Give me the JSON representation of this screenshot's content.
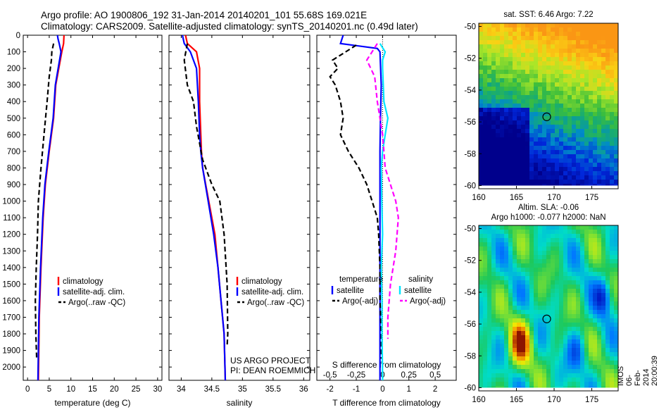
{
  "header": {
    "line1": "Argo profile: AO 1900806_192 31-Jan-2014 20140201_101 55.68S 169.021E",
    "line2": "Climatology: CARS2009. Satellite-adjusted climatology: synTS_20140201.nc (0.49d later)"
  },
  "credits": {
    "project": "US ARGO PROJECT",
    "pi": "PI: DEAN ROEMMICH",
    "stamp": "IMOS 06-Feb-2014 20:00:39"
  },
  "colors": {
    "climatology": "#ff0000",
    "satellite": "#0000ff",
    "argo": "#000000",
    "satellite_salinity": "#00e5ff",
    "argo_salinity": "#ff00ff"
  },
  "chart_data": [
    {
      "type": "line",
      "name": "temperature",
      "xlabel": "temperature (deg C)",
      "ylabel": "",
      "xlim": [
        -1,
        31
      ],
      "ylim": [
        2080,
        0
      ],
      "xticks": [
        0,
        5,
        10,
        15,
        20,
        25,
        30
      ],
      "yticks": [
        0,
        100,
        200,
        300,
        400,
        500,
        600,
        700,
        800,
        900,
        1000,
        1100,
        1200,
        1300,
        1400,
        1500,
        1600,
        1700,
        1800,
        1900,
        2000
      ],
      "legend": [
        "climatology",
        "satellite-adj. clim.",
        "Argo(..raw -QC)"
      ],
      "legend_position": "lower-right",
      "series": [
        {
          "name": "climatology",
          "color": "#ff0000",
          "dash": "",
          "points": [
            [
              8.4,
              0
            ],
            [
              8.3,
              50
            ],
            [
              7.9,
              100
            ],
            [
              6.5,
              300
            ],
            [
              6.0,
              500
            ],
            [
              5.0,
              700
            ],
            [
              4.1,
              900
            ],
            [
              3.6,
              1100
            ],
            [
              3.1,
              1400
            ],
            [
              2.7,
              1700
            ],
            [
              2.5,
              2080
            ]
          ]
        },
        {
          "name": "satellite-adj. clim.",
          "color": "#0000ff",
          "dash": "",
          "points": [
            [
              6.9,
              0
            ],
            [
              7.0,
              20
            ],
            [
              7.3,
              50
            ],
            [
              7.7,
              100
            ],
            [
              6.4,
              300
            ],
            [
              5.9,
              500
            ],
            [
              4.9,
              700
            ],
            [
              4.0,
              900
            ],
            [
              3.5,
              1100
            ],
            [
              3.0,
              1400
            ],
            [
              2.6,
              1700
            ],
            [
              2.4,
              2080
            ]
          ]
        },
        {
          "name": "Argo(..raw -QC)",
          "color": "#000000",
          "dash": "7,4",
          "points": [
            [
              6.0,
              50
            ],
            [
              5.6,
              100
            ],
            [
              5.5,
              150
            ],
            [
              5.0,
              250
            ],
            [
              4.5,
              400
            ],
            [
              3.8,
              600
            ],
            [
              3.1,
              800
            ],
            [
              2.5,
              1000
            ],
            [
              2.3,
              1200
            ],
            [
              2.0,
              1400
            ],
            [
              1.8,
              1600
            ],
            [
              1.9,
              1800
            ],
            [
              2.1,
              1950
            ]
          ]
        }
      ]
    },
    {
      "type": "line",
      "name": "salinity",
      "xlabel": "salinity",
      "ylabel": "",
      "xlim": [
        33.8,
        36.1
      ],
      "ylim": [
        2080,
        0
      ],
      "xticks": [
        34,
        34.5,
        35,
        35.5,
        36
      ],
      "xtick_labels": [
        "34",
        "34.5",
        "35",
        "35.5",
        "36"
      ],
      "legend": [
        "climatology",
        "satellite-adj. clim.",
        "Argo(..raw -QC)"
      ],
      "legend_position": "lower-right",
      "series": [
        {
          "name": "climatology",
          "color": "#ff0000",
          "dash": "",
          "points": [
            [
              34.07,
              0
            ],
            [
              34.1,
              50
            ],
            [
              34.25,
              100
            ],
            [
              34.3,
              200
            ],
            [
              34.3,
              400
            ],
            [
              34.32,
              600
            ],
            [
              34.33,
              700
            ],
            [
              34.35,
              800
            ],
            [
              34.45,
              1000
            ],
            [
              34.55,
              1200
            ],
            [
              34.6,
              1400
            ],
            [
              34.65,
              1600
            ],
            [
              34.7,
              1800
            ],
            [
              34.72,
              2080
            ]
          ]
        },
        {
          "name": "satellite-adj. clim.",
          "color": "#0000ff",
          "dash": "",
          "points": [
            [
              34.02,
              0
            ],
            [
              34.05,
              50
            ],
            [
              34.15,
              100
            ],
            [
              34.25,
              200
            ],
            [
              34.28,
              400
            ],
            [
              34.3,
              600
            ],
            [
              34.32,
              700
            ],
            [
              34.35,
              800
            ],
            [
              34.44,
              1000
            ],
            [
              34.53,
              1200
            ],
            [
              34.6,
              1400
            ],
            [
              34.65,
              1600
            ],
            [
              34.7,
              1800
            ],
            [
              34.72,
              2080
            ]
          ]
        },
        {
          "name": "Argo(..raw -QC)",
          "color": "#000000",
          "dash": "7,4",
          "points": [
            [
              34.1,
              50
            ],
            [
              34.05,
              150
            ],
            [
              34.1,
              300
            ],
            [
              34.2,
              400
            ],
            [
              34.25,
              550
            ],
            [
              34.35,
              750
            ],
            [
              34.5,
              900
            ],
            [
              34.63,
              1000
            ],
            [
              34.7,
              1200
            ],
            [
              34.75,
              1500
            ],
            [
              34.76,
              1800
            ],
            [
              34.75,
              1870
            ]
          ]
        }
      ]
    },
    {
      "type": "line",
      "name": "difference",
      "xlabel": "T difference from climatology",
      "xlabel_top": "S difference from climatology",
      "ylabel": "",
      "xlim": [
        -2.5,
        2.8
      ],
      "ylim": [
        2080,
        0
      ],
      "xticks": [
        -2,
        -1,
        0,
        1,
        2
      ],
      "xtick_labels": [
        "-2",
        "-1",
        "0",
        "1",
        "2"
      ],
      "s_xtick_labels": [
        "-0.5",
        "-0.25",
        "0",
        "0.25",
        "0.5"
      ],
      "legend_groups": [
        {
          "title": "temperature",
          "items": [
            "satellite",
            "Argo(-adj)"
          ]
        },
        {
          "title": "salinity",
          "items": [
            "satellite",
            "Argo(-adj)"
          ]
        }
      ],
      "series": [
        {
          "name": "temperature satellite",
          "color": "#0000ff",
          "dash": "",
          "points": [
            [
              -1.5,
              0
            ],
            [
              -1.6,
              50
            ],
            [
              -0.2,
              80
            ],
            [
              -0.1,
              100
            ],
            [
              -0.05,
              300
            ],
            [
              -0.08,
              500
            ],
            [
              -0.1,
              700
            ],
            [
              -0.1,
              900
            ],
            [
              -0.1,
              1100
            ],
            [
              -0.1,
              1300
            ],
            [
              -0.1,
              1500
            ],
            [
              -0.1,
              1700
            ],
            [
              -0.1,
              1900
            ],
            [
              -0.1,
              2080
            ]
          ]
        },
        {
          "name": "temperature Argo(-adj)",
          "color": "#000000",
          "dash": "7,4",
          "points": [
            [
              -1.0,
              60
            ],
            [
              -1.5,
              110
            ],
            [
              -1.9,
              150
            ],
            [
              -1.7,
              200
            ],
            [
              -2.0,
              250
            ],
            [
              -1.8,
              300
            ],
            [
              -1.6,
              400
            ],
            [
              -1.5,
              500
            ],
            [
              -1.6,
              600
            ],
            [
              -1.3,
              700
            ],
            [
              -0.9,
              800
            ],
            [
              -0.6,
              900
            ],
            [
              -0.4,
              1000
            ],
            [
              -0.2,
              1100
            ],
            [
              -0.15,
              1200
            ],
            [
              -0.1,
              1400
            ],
            [
              -0.1,
              1600
            ],
            [
              -0.05,
              1800
            ],
            [
              -0.05,
              1950
            ]
          ]
        },
        {
          "name": "salinity satellite",
          "color": "#00e5ff",
          "dash": "",
          "points": [
            [
              -0.1,
              50
            ],
            [
              0.1,
              100
            ],
            [
              0.0,
              150
            ],
            [
              0.0,
              200
            ],
            [
              0.05,
              400
            ],
            [
              0.2,
              500
            ],
            [
              0.1,
              600
            ],
            [
              0.0,
              700
            ],
            [
              -0.05,
              800
            ],
            [
              -0.03,
              1000
            ],
            [
              0.0,
              1200
            ],
            [
              -0.05,
              1400
            ],
            [
              -0.02,
              1600
            ],
            [
              -0.02,
              1800
            ],
            [
              0.0,
              2080
            ]
          ]
        },
        {
          "name": "salinity Argo(-adj)",
          "color": "#ff00ff",
          "dash": "7,4",
          "points": [
            [
              -0.2,
              50
            ],
            [
              -0.4,
              100
            ],
            [
              -0.6,
              150
            ],
            [
              -0.3,
              250
            ],
            [
              -0.2,
              400
            ],
            [
              -0.1,
              500
            ],
            [
              0.0,
              600
            ],
            [
              0.1,
              800
            ],
            [
              0.5,
              1000
            ],
            [
              0.6,
              1100
            ],
            [
              0.5,
              1300
            ],
            [
              0.3,
              1500
            ],
            [
              0.2,
              1700
            ],
            [
              0.2,
              1830
            ]
          ]
        }
      ]
    },
    {
      "type": "heatmap",
      "name": "sst-map",
      "title": "sat. SST: 6.46 Argo: 7.22",
      "xlim": [
        160,
        178.5
      ],
      "ylim": [
        -60.2,
        -49.8
      ],
      "xticks": [
        160,
        165,
        170,
        175
      ],
      "yticks": [
        -50,
        -52,
        -54,
        -56,
        -58,
        -60
      ],
      "marker": {
        "lon": 169.02,
        "lat": -55.68
      }
    },
    {
      "type": "heatmap",
      "name": "sla-map",
      "title": "Altim. SLA: -0.06",
      "subtitle": "Argo h1000: -0.077 h2000: NaN",
      "xlim": [
        160,
        178.5
      ],
      "ylim": [
        -60.2,
        -49.8
      ],
      "xticks": [
        160,
        165,
        170,
        175
      ],
      "yticks": [
        -50,
        -52,
        -54,
        -56,
        -58,
        -60
      ],
      "marker": {
        "lon": 169.02,
        "lat": -55.68
      }
    }
  ]
}
